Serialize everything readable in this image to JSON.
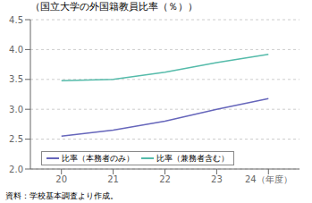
{
  "chart_data": {
    "type": "line",
    "title": "（国立大学の外国籍教員比率（％））",
    "note": "資料：学校基本調査より作成。",
    "x": [
      20,
      21,
      22,
      23,
      24
    ],
    "series": [
      {
        "name": "比率（本務者のみ）",
        "color": "#6666bb",
        "values": [
          2.55,
          2.65,
          2.8,
          3.0,
          3.18
        ]
      },
      {
        "name": "比率（兼務者含む）",
        "color": "#55bbaa",
        "values": [
          3.48,
          3.5,
          3.62,
          3.78,
          3.92
        ]
      }
    ],
    "xlim": [
      19.4,
      24.6
    ],
    "xticks": [
      20,
      21,
      22,
      23,
      {
        "value": 24,
        "label": "24（年度）"
      }
    ],
    "ylim": [
      2.0,
      4.5
    ],
    "yticks": [
      {
        "value": 2.0,
        "label": "2.0"
      },
      2.5,
      {
        "value": 3.0,
        "label": "3.0"
      },
      3.5,
      {
        "value": 4.0,
        "label": "4.0"
      },
      4.5
    ],
    "grid": "y",
    "legend": "lower left"
  }
}
